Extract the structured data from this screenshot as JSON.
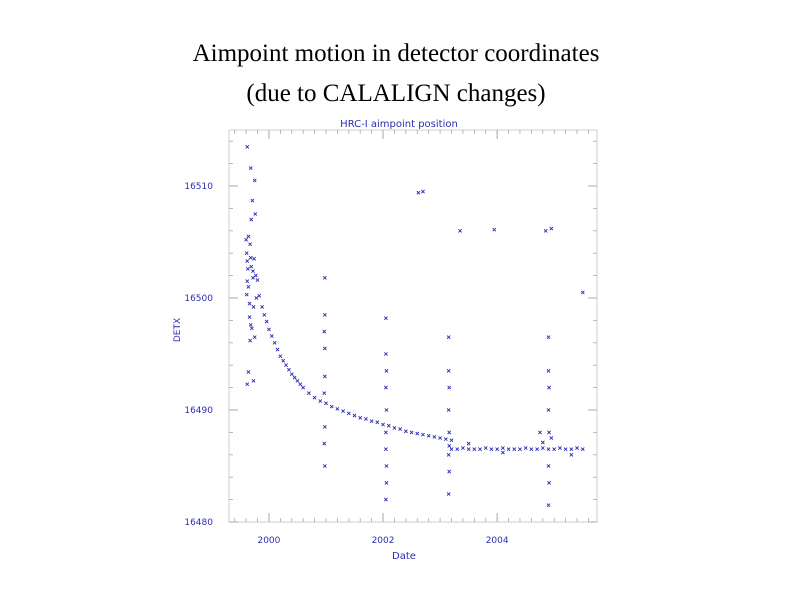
{
  "slide": {
    "title_line1": "Aimpoint motion in detector coordinates",
    "title_line2": "(due to CALALIGN changes)"
  },
  "chart_data": {
    "type": "scatter",
    "title": "HRC-I aimpoint position",
    "xlabel": "Date",
    "ylabel": "DETX",
    "xlim": [
      1999.3,
      2005.75
    ],
    "ylim": [
      16480,
      16515
    ],
    "xticks": [
      2000,
      2002,
      2004
    ],
    "xtick_labels": [
      "2000",
      "2002",
      "2004"
    ],
    "yticks": [
      16480,
      16490,
      16500,
      16510
    ],
    "ytick_labels": [
      "16480",
      "16490",
      "16500",
      "16510"
    ],
    "minor_x_step": 0.2,
    "minor_y_step": 2,
    "marker": "x",
    "color": "#2d2db4",
    "series": [
      {
        "name": "aimpoint",
        "points": [
          [
            1999.62,
            16513.5
          ],
          [
            1999.68,
            16511.6
          ],
          [
            1999.75,
            16510.5
          ],
          [
            1999.62,
            16492.3
          ],
          [
            1999.73,
            16492.6
          ],
          [
            1999.6,
            16505.2
          ],
          [
            1999.61,
            16504.0
          ],
          [
            1999.62,
            16503.3
          ],
          [
            1999.63,
            16502.6
          ],
          [
            1999.62,
            16501.5
          ],
          [
            1999.64,
            16501.0
          ],
          [
            1999.61,
            16500.3
          ],
          [
            1999.66,
            16499.5
          ],
          [
            1999.64,
            16505.5
          ],
          [
            1999.67,
            16504.8
          ],
          [
            1999.68,
            16503.6
          ],
          [
            1999.69,
            16502.8
          ],
          [
            1999.66,
            16498.3
          ],
          [
            1999.7,
            16497.3
          ],
          [
            1999.67,
            16496.2
          ],
          [
            1999.68,
            16497.6
          ],
          [
            1999.72,
            16501.8
          ],
          [
            1999.73,
            16499.2
          ],
          [
            1999.75,
            16496.5
          ],
          [
            1999.72,
            16502.4
          ],
          [
            1999.74,
            16503.5
          ],
          [
            1999.77,
            16502.0
          ],
          [
            1999.8,
            16501.6
          ],
          [
            1999.78,
            16500.0
          ],
          [
            1999.71,
            16508.7
          ],
          [
            1999.69,
            16507.0
          ],
          [
            1999.76,
            16507.5
          ],
          [
            1999.64,
            16493.4
          ],
          [
            1999.83,
            16500.2
          ],
          [
            1999.88,
            16499.2
          ],
          [
            1999.92,
            16498.5
          ],
          [
            1999.96,
            16497.9
          ],
          [
            2000.0,
            16497.2
          ],
          [
            2000.05,
            16496.6
          ],
          [
            2000.1,
            16496.0
          ],
          [
            2000.15,
            16495.4
          ],
          [
            2000.2,
            16494.8
          ],
          [
            2000.25,
            16494.4
          ],
          [
            2000.3,
            16494.0
          ],
          [
            2000.35,
            16493.6
          ],
          [
            2000.4,
            16493.2
          ],
          [
            2000.45,
            16492.9
          ],
          [
            2000.5,
            16492.6
          ],
          [
            2000.55,
            16492.3
          ],
          [
            2000.6,
            16492.0
          ],
          [
            2000.7,
            16491.5
          ],
          [
            2000.8,
            16491.1
          ],
          [
            2000.9,
            16490.8
          ],
          [
            2001.0,
            16490.6
          ],
          [
            2001.1,
            16490.3
          ],
          [
            2001.2,
            16490.1
          ],
          [
            2001.3,
            16489.9
          ],
          [
            2001.4,
            16489.7
          ],
          [
            2001.5,
            16489.5
          ],
          [
            2001.6,
            16489.3
          ],
          [
            2001.7,
            16489.2
          ],
          [
            2001.8,
            16489.0
          ],
          [
            2001.9,
            16488.9
          ],
          [
            2002.0,
            16488.7
          ],
          [
            2002.1,
            16488.6
          ],
          [
            2002.2,
            16488.4
          ],
          [
            2002.3,
            16488.3
          ],
          [
            2002.4,
            16488.1
          ],
          [
            2002.5,
            16488.0
          ],
          [
            2002.6,
            16487.9
          ],
          [
            2002.7,
            16487.8
          ],
          [
            2002.8,
            16487.7
          ],
          [
            2002.9,
            16487.6
          ],
          [
            2003.0,
            16487.5
          ],
          [
            2003.1,
            16487.4
          ],
          [
            2003.2,
            16487.3
          ],
          [
            2000.98,
            16501.8
          ],
          [
            2000.98,
            16498.5
          ],
          [
            2000.97,
            16497.0
          ],
          [
            2000.98,
            16495.5
          ],
          [
            2000.98,
            16493.0
          ],
          [
            2000.97,
            16491.5
          ],
          [
            2000.98,
            16488.5
          ],
          [
            2000.98,
            16485.0
          ],
          [
            2000.97,
            16487.0
          ],
          [
            2002.05,
            16498.2
          ],
          [
            2002.05,
            16495.0
          ],
          [
            2002.06,
            16493.5
          ],
          [
            2002.05,
            16492.0
          ],
          [
            2002.06,
            16490.0
          ],
          [
            2002.05,
            16486.5
          ],
          [
            2002.06,
            16485.0
          ],
          [
            2002.05,
            16482.0
          ],
          [
            2002.06,
            16483.5
          ],
          [
            2002.05,
            16488.0
          ],
          [
            2003.15,
            16496.5
          ],
          [
            2003.15,
            16493.5
          ],
          [
            2003.16,
            16492.0
          ],
          [
            2003.15,
            16490.0
          ],
          [
            2003.16,
            16488.0
          ],
          [
            2003.15,
            16486.0
          ],
          [
            2003.16,
            16484.5
          ],
          [
            2003.15,
            16482.5
          ],
          [
            2003.16,
            16486.8
          ],
          [
            2003.2,
            16486.5
          ],
          [
            2003.3,
            16486.5
          ],
          [
            2003.4,
            16486.6
          ],
          [
            2003.5,
            16486.5
          ],
          [
            2003.6,
            16486.5
          ],
          [
            2003.7,
            16486.5
          ],
          [
            2003.8,
            16486.6
          ],
          [
            2003.9,
            16486.5
          ],
          [
            2004.0,
            16486.5
          ],
          [
            2004.1,
            16486.6
          ],
          [
            2004.2,
            16486.5
          ],
          [
            2004.3,
            16486.5
          ],
          [
            2004.4,
            16486.5
          ],
          [
            2004.5,
            16486.6
          ],
          [
            2004.6,
            16486.5
          ],
          [
            2004.7,
            16486.5
          ],
          [
            2004.8,
            16486.6
          ],
          [
            2004.9,
            16486.5
          ],
          [
            2005.0,
            16486.5
          ],
          [
            2005.1,
            16486.6
          ],
          [
            2005.2,
            16486.5
          ],
          [
            2005.3,
            16486.5
          ],
          [
            2005.4,
            16486.6
          ],
          [
            2005.5,
            16486.5
          ],
          [
            2003.5,
            16487.0
          ],
          [
            2004.1,
            16486.2
          ],
          [
            2004.8,
            16487.1
          ],
          [
            2005.3,
            16486.0
          ],
          [
            2004.9,
            16496.5
          ],
          [
            2004.9,
            16493.5
          ],
          [
            2004.91,
            16492.0
          ],
          [
            2004.9,
            16490.0
          ],
          [
            2004.91,
            16488.0
          ],
          [
            2004.9,
            16485.0
          ],
          [
            2004.91,
            16483.5
          ],
          [
            2004.9,
            16481.5
          ],
          [
            2004.75,
            16488.0
          ],
          [
            2004.95,
            16487.5
          ],
          [
            2002.62,
            16509.4
          ],
          [
            2002.7,
            16509.5
          ],
          [
            2003.35,
            16506.0
          ],
          [
            2003.95,
            16506.1
          ],
          [
            2004.85,
            16506.0
          ],
          [
            2004.95,
            16506.2
          ],
          [
            2005.5,
            16500.5
          ]
        ]
      }
    ]
  }
}
